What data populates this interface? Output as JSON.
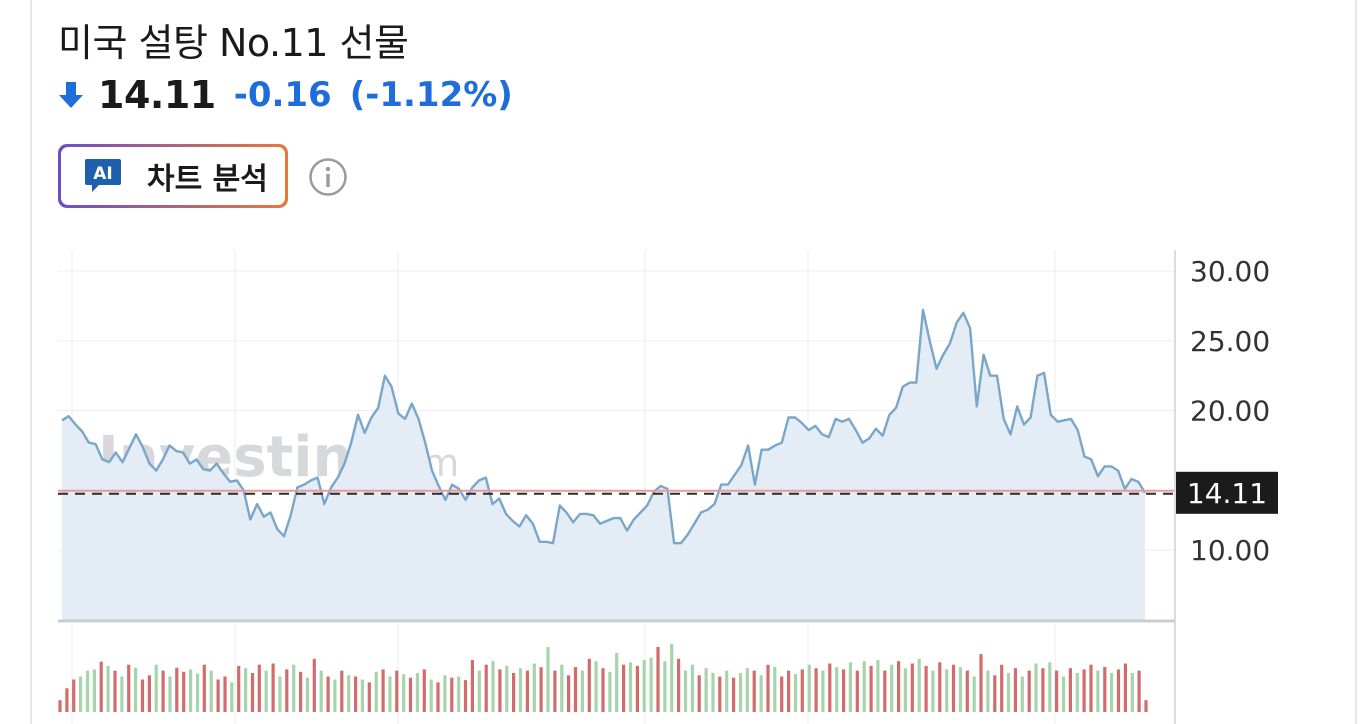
{
  "header": {
    "title": "미국 설탕 No.11 선물",
    "price": "14.11",
    "change": "-0.16",
    "change_pct": "(-1.12%)",
    "direction": "down"
  },
  "ai_button": {
    "badge": "AI",
    "label": "차트 분석"
  },
  "info_icon": "info-icon",
  "watermark": {
    "brand": "Investing",
    "suffix": ".com"
  },
  "colors": {
    "down": "#1f6ddb",
    "line": "#7aa6c9",
    "area": "#e4edf5",
    "vol_up": "#a8d4ac",
    "vol_down": "#d36b6b",
    "label_bg": "#1b1b1b"
  },
  "chart_data": {
    "type": "area",
    "y_ticks": [
      "30.00",
      "25.00",
      "20.00",
      "10.00"
    ],
    "ylim": [
      5,
      31.5
    ],
    "current_value": 14.11,
    "current_label": "14.11",
    "grid": true,
    "values": [
      19.3,
      19.6,
      19.0,
      18.5,
      17.7,
      17.6,
      16.5,
      16.3,
      17.0,
      16.3,
      17.3,
      18.3,
      17.4,
      16.2,
      15.7,
      16.5,
      17.5,
      17.1,
      17.0,
      16.2,
      16.5,
      15.8,
      15.7,
      16.2,
      15.5,
      14.9,
      15.0,
      14.3,
      12.2,
      13.3,
      12.4,
      12.7,
      11.5,
      11.0,
      12.5,
      14.5,
      14.7,
      15.0,
      15.2,
      13.3,
      14.5,
      15.2,
      16.2,
      17.7,
      19.7,
      18.4,
      19.5,
      20.2,
      22.5,
      21.7,
      19.8,
      19.4,
      20.5,
      19.4,
      17.7,
      15.7,
      14.6,
      13.6,
      14.7,
      14.4,
      13.6,
      14.5,
      15.0,
      15.2,
      13.3,
      13.7,
      12.6,
      12.1,
      11.7,
      12.5,
      11.9,
      10.6,
      10.6,
      10.5,
      13.2,
      12.7,
      12.0,
      12.6,
      12.6,
      12.5,
      11.9,
      12.1,
      12.3,
      12.3,
      11.4,
      12.2,
      12.7,
      13.2,
      14.2,
      14.6,
      14.4,
      10.5,
      10.5,
      11.1,
      11.9,
      12.7,
      12.9,
      13.3,
      14.7,
      14.7,
      15.4,
      16.1,
      17.5,
      14.7,
      17.2,
      17.2,
      17.5,
      17.7,
      19.5,
      19.5,
      19.1,
      18.6,
      18.9,
      18.3,
      18.1,
      19.4,
      19.2,
      19.4,
      18.6,
      17.7,
      18.0,
      18.7,
      18.2,
      19.7,
      20.2,
      21.7,
      22.0,
      22.0,
      27.2,
      25.0,
      23.0,
      24.0,
      24.8,
      26.3,
      27.0,
      25.9,
      20.3,
      24.0,
      22.5,
      22.5,
      19.4,
      18.3,
      20.3,
      19.0,
      19.5,
      22.5,
      22.7,
      19.7,
      19.2,
      19.3,
      19.4,
      18.6,
      16.7,
      16.5,
      15.3,
      16.0,
      16.0,
      15.7,
      14.4,
      15.1,
      14.9,
      14.11
    ],
    "volume": [
      {
        "v": 0.2,
        "d": "down"
      },
      {
        "v": 0.4,
        "d": "down"
      },
      {
        "v": 0.55,
        "d": "down"
      },
      {
        "v": 0.6,
        "d": "up"
      },
      {
        "v": 0.7,
        "d": "up"
      },
      {
        "v": 0.72,
        "d": "up"
      },
      {
        "v": 0.85,
        "d": "down"
      },
      {
        "v": 0.78,
        "d": "up"
      },
      {
        "v": 0.7,
        "d": "down"
      },
      {
        "v": 0.6,
        "d": "up"
      },
      {
        "v": 0.8,
        "d": "down"
      },
      {
        "v": 0.75,
        "d": "up"
      },
      {
        "v": 0.55,
        "d": "down"
      },
      {
        "v": 0.62,
        "d": "down"
      },
      {
        "v": 0.8,
        "d": "up"
      },
      {
        "v": 0.7,
        "d": "down"
      },
      {
        "v": 0.6,
        "d": "up"
      },
      {
        "v": 0.75,
        "d": "down"
      },
      {
        "v": 0.68,
        "d": "down"
      },
      {
        "v": 0.72,
        "d": "up"
      },
      {
        "v": 0.65,
        "d": "up"
      },
      {
        "v": 0.8,
        "d": "down"
      },
      {
        "v": 0.7,
        "d": "up"
      },
      {
        "v": 0.55,
        "d": "down"
      },
      {
        "v": 0.6,
        "d": "down"
      },
      {
        "v": 0.5,
        "d": "up"
      },
      {
        "v": 0.78,
        "d": "down"
      },
      {
        "v": 0.74,
        "d": "up"
      },
      {
        "v": 0.66,
        "d": "down"
      },
      {
        "v": 0.8,
        "d": "down"
      },
      {
        "v": 0.7,
        "d": "up"
      },
      {
        "v": 0.82,
        "d": "down"
      },
      {
        "v": 0.6,
        "d": "up"
      },
      {
        "v": 0.72,
        "d": "down"
      },
      {
        "v": 0.8,
        "d": "up"
      },
      {
        "v": 0.68,
        "d": "down"
      },
      {
        "v": 0.58,
        "d": "up"
      },
      {
        "v": 0.9,
        "d": "down"
      },
      {
        "v": 0.7,
        "d": "up"
      },
      {
        "v": 0.6,
        "d": "down"
      },
      {
        "v": 0.55,
        "d": "up"
      },
      {
        "v": 0.7,
        "d": "down"
      },
      {
        "v": 0.62,
        "d": "up"
      },
      {
        "v": 0.6,
        "d": "down"
      },
      {
        "v": 0.55,
        "d": "up"
      },
      {
        "v": 0.5,
        "d": "down"
      },
      {
        "v": 0.68,
        "d": "up"
      },
      {
        "v": 0.72,
        "d": "down"
      },
      {
        "v": 0.6,
        "d": "up"
      },
      {
        "v": 0.7,
        "d": "down"
      },
      {
        "v": 0.64,
        "d": "up"
      },
      {
        "v": 0.58,
        "d": "down"
      },
      {
        "v": 0.66,
        "d": "up"
      },
      {
        "v": 0.72,
        "d": "down"
      },
      {
        "v": 0.55,
        "d": "up"
      },
      {
        "v": 0.5,
        "d": "down"
      },
      {
        "v": 0.62,
        "d": "up"
      },
      {
        "v": 0.58,
        "d": "down"
      },
      {
        "v": 0.6,
        "d": "up"
      },
      {
        "v": 0.54,
        "d": "down"
      },
      {
        "v": 0.88,
        "d": "down"
      },
      {
        "v": 0.7,
        "d": "up"
      },
      {
        "v": 0.8,
        "d": "down"
      },
      {
        "v": 0.86,
        "d": "up"
      },
      {
        "v": 0.72,
        "d": "down"
      },
      {
        "v": 0.78,
        "d": "up"
      },
      {
        "v": 0.66,
        "d": "down"
      },
      {
        "v": 0.74,
        "d": "up"
      },
      {
        "v": 0.7,
        "d": "down"
      },
      {
        "v": 0.82,
        "d": "up"
      },
      {
        "v": 0.76,
        "d": "down"
      },
      {
        "v": 1.1,
        "d": "up"
      },
      {
        "v": 0.7,
        "d": "down"
      },
      {
        "v": 0.8,
        "d": "up"
      },
      {
        "v": 0.62,
        "d": "down"
      },
      {
        "v": 0.76,
        "d": "down"
      },
      {
        "v": 0.7,
        "d": "up"
      },
      {
        "v": 0.9,
        "d": "down"
      },
      {
        "v": 0.86,
        "d": "up"
      },
      {
        "v": 0.74,
        "d": "down"
      },
      {
        "v": 0.68,
        "d": "up"
      },
      {
        "v": 1.0,
        "d": "up"
      },
      {
        "v": 0.8,
        "d": "down"
      },
      {
        "v": 0.84,
        "d": "up"
      },
      {
        "v": 0.78,
        "d": "down"
      },
      {
        "v": 0.88,
        "d": "up"
      },
      {
        "v": 0.92,
        "d": "up"
      },
      {
        "v": 1.1,
        "d": "down"
      },
      {
        "v": 0.86,
        "d": "up"
      },
      {
        "v": 1.15,
        "d": "up"
      },
      {
        "v": 0.9,
        "d": "down"
      },
      {
        "v": 0.7,
        "d": "up"
      },
      {
        "v": 0.8,
        "d": "up"
      },
      {
        "v": 0.62,
        "d": "down"
      },
      {
        "v": 0.74,
        "d": "up"
      },
      {
        "v": 0.66,
        "d": "up"
      },
      {
        "v": 0.6,
        "d": "down"
      },
      {
        "v": 0.7,
        "d": "up"
      },
      {
        "v": 0.58,
        "d": "down"
      },
      {
        "v": 0.66,
        "d": "up"
      },
      {
        "v": 0.74,
        "d": "up"
      },
      {
        "v": 0.7,
        "d": "down"
      },
      {
        "v": 0.62,
        "d": "up"
      },
      {
        "v": 0.8,
        "d": "down"
      },
      {
        "v": 0.76,
        "d": "up"
      },
      {
        "v": 0.6,
        "d": "down"
      },
      {
        "v": 0.7,
        "d": "down"
      },
      {
        "v": 0.64,
        "d": "up"
      },
      {
        "v": 0.72,
        "d": "down"
      },
      {
        "v": 0.8,
        "d": "up"
      },
      {
        "v": 0.74,
        "d": "down"
      },
      {
        "v": 0.7,
        "d": "up"
      },
      {
        "v": 0.82,
        "d": "down"
      },
      {
        "v": 0.76,
        "d": "up"
      },
      {
        "v": 0.72,
        "d": "down"
      },
      {
        "v": 0.84,
        "d": "up"
      },
      {
        "v": 0.7,
        "d": "down"
      },
      {
        "v": 0.86,
        "d": "up"
      },
      {
        "v": 0.78,
        "d": "down"
      },
      {
        "v": 0.88,
        "d": "up"
      },
      {
        "v": 0.7,
        "d": "down"
      },
      {
        "v": 0.8,
        "d": "up"
      },
      {
        "v": 0.86,
        "d": "down"
      },
      {
        "v": 0.74,
        "d": "up"
      },
      {
        "v": 0.82,
        "d": "down"
      },
      {
        "v": 0.9,
        "d": "up"
      },
      {
        "v": 0.78,
        "d": "down"
      },
      {
        "v": 0.7,
        "d": "up"
      },
      {
        "v": 0.84,
        "d": "down"
      },
      {
        "v": 0.72,
        "d": "up"
      },
      {
        "v": 0.8,
        "d": "down"
      },
      {
        "v": 0.76,
        "d": "up"
      },
      {
        "v": 0.7,
        "d": "down"
      },
      {
        "v": 0.6,
        "d": "up"
      },
      {
        "v": 0.98,
        "d": "down"
      },
      {
        "v": 0.7,
        "d": "up"
      },
      {
        "v": 0.62,
        "d": "down"
      },
      {
        "v": 0.8,
        "d": "down"
      },
      {
        "v": 0.66,
        "d": "up"
      },
      {
        "v": 0.74,
        "d": "down"
      },
      {
        "v": 0.6,
        "d": "up"
      },
      {
        "v": 0.7,
        "d": "down"
      },
      {
        "v": 0.82,
        "d": "up"
      },
      {
        "v": 0.74,
        "d": "down"
      },
      {
        "v": 0.84,
        "d": "up"
      },
      {
        "v": 0.7,
        "d": "down"
      },
      {
        "v": 0.6,
        "d": "up"
      },
      {
        "v": 0.74,
        "d": "down"
      },
      {
        "v": 0.66,
        "d": "up"
      },
      {
        "v": 0.72,
        "d": "down"
      },
      {
        "v": 0.8,
        "d": "down"
      },
      {
        "v": 0.7,
        "d": "up"
      },
      {
        "v": 0.76,
        "d": "down"
      },
      {
        "v": 0.66,
        "d": "up"
      },
      {
        "v": 0.72,
        "d": "down"
      },
      {
        "v": 0.82,
        "d": "down"
      },
      {
        "v": 0.66,
        "d": "up"
      },
      {
        "v": 0.7,
        "d": "down"
      },
      {
        "v": 0.2,
        "d": "down"
      }
    ]
  }
}
